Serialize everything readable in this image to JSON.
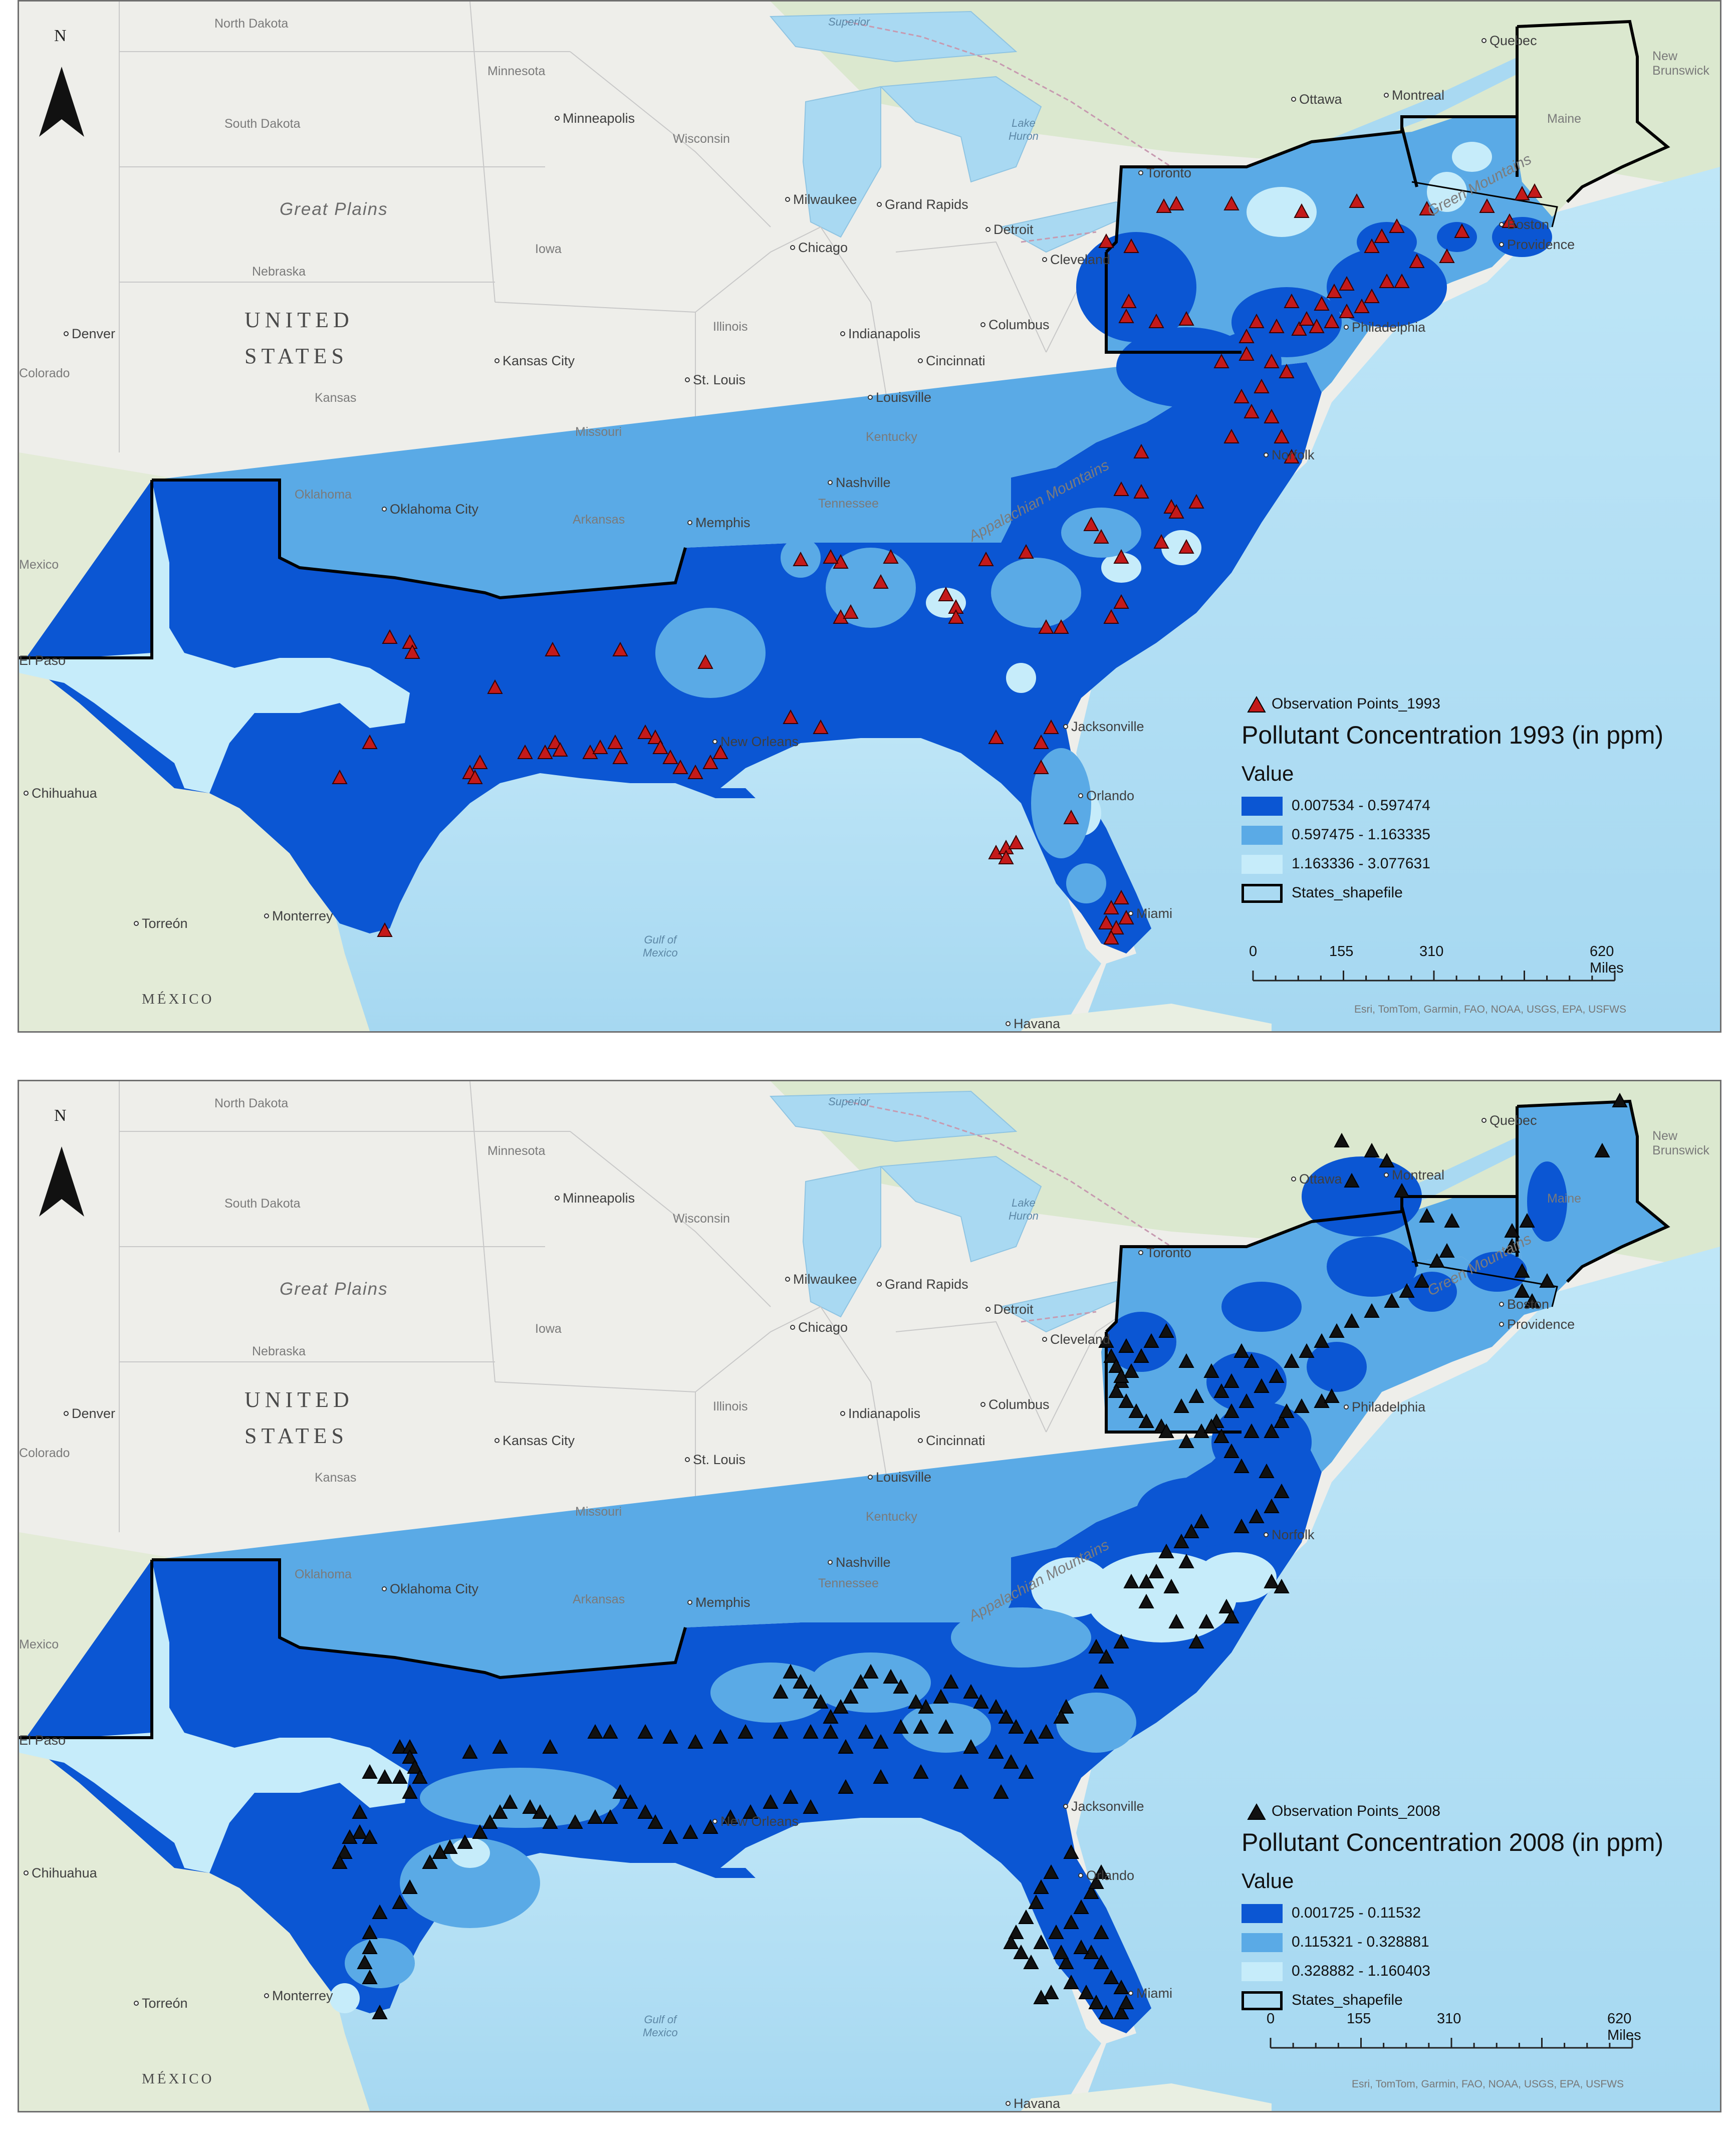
{
  "places": [
    {
      "name": "North Dakota"
    },
    {
      "name": "Minnesota"
    },
    {
      "name": "South Dakota"
    },
    {
      "name": "Minneapolis"
    },
    {
      "name": "Wisconsin"
    },
    {
      "name": "Great Plains"
    },
    {
      "name": "Nebraska"
    },
    {
      "name": "Iowa"
    },
    {
      "name": "UNITED"
    },
    {
      "name": "STATES"
    },
    {
      "name": "Denver"
    },
    {
      "name": "Colorado"
    },
    {
      "name": "Kansas City"
    },
    {
      "name": "Kansas"
    },
    {
      "name": "Illinois"
    },
    {
      "name": "Indianapolis"
    },
    {
      "name": "Columbus"
    },
    {
      "name": "Cincinnati"
    },
    {
      "name": "St. Louis"
    },
    {
      "name": "Missouri"
    },
    {
      "name": "Louisville"
    },
    {
      "name": "Kentucky"
    },
    {
      "name": "Oklahoma"
    },
    {
      "name": "Oklahoma City"
    },
    {
      "name": "Arkansas"
    },
    {
      "name": "Memphis"
    },
    {
      "name": "Nashville"
    },
    {
      "name": "Tennessee"
    },
    {
      "name": "Mexico"
    },
    {
      "name": "El Paso"
    },
    {
      "name": "Chihuahua"
    },
    {
      "name": "Torreón"
    },
    {
      "name": "Monterrey"
    },
    {
      "name": "MÉXICO"
    },
    {
      "name": "Havana"
    },
    {
      "name": "Milwaukee"
    },
    {
      "name": "Grand Rapids"
    },
    {
      "name": "Chicago"
    },
    {
      "name": "Detroit"
    },
    {
      "name": "Cleveland"
    },
    {
      "name": "Toronto"
    },
    {
      "name": "Ottawa"
    },
    {
      "name": "Montreal"
    },
    {
      "name": "Quebec"
    },
    {
      "name": "New Brunswick"
    },
    {
      "name": "Maine"
    },
    {
      "name": "Boston"
    },
    {
      "name": "Providence"
    },
    {
      "name": "Philadelphia"
    },
    {
      "name": "Norfolk"
    },
    {
      "name": "Jacksonville"
    },
    {
      "name": "New Orleans"
    },
    {
      "name": "Orlando"
    },
    {
      "name": "Miami"
    },
    {
      "name": "Superior"
    },
    {
      "name": "Lake Huron"
    },
    {
      "name": "Gulf of Mexico"
    },
    {
      "name": "Appalachian Mountains"
    },
    {
      "name": "Green Mountains"
    }
  ],
  "maps": [
    {
      "observation_label": "Observation Points_1993",
      "title": "Pollutant Concentration 1993 (in ppm)",
      "value_heading": "Value",
      "classes": [
        {
          "label": "0.007534 - 0.597474",
          "color": "#0b56d3"
        },
        {
          "label": "0.597475 - 1.163335",
          "color": "#5aaae6"
        },
        {
          "label": "1.163336 - 3.077631",
          "color": "#c6ecfa"
        }
      ],
      "states_label": "States_shapefile",
      "marker_color": "#c41a1a",
      "scale": {
        "ticks": [
          "0",
          "155",
          "310",
          "620 Miles"
        ]
      },
      "attribution": "Esri, TomTom, Garmin, FAO, NOAA, USGS, EPA, USFWS",
      "north": "N"
    },
    {
      "observation_label": "Observation Points_2008",
      "title": "Pollutant Concentration 2008 (in ppm)",
      "value_heading": "Value",
      "classes": [
        {
          "label": "0.001725 - 0.11532",
          "color": "#0b56d3"
        },
        {
          "label": "0.115321 - 0.328881",
          "color": "#5aaae6"
        },
        {
          "label": "0.328882 - 1.160403",
          "color": "#c6ecfa"
        }
      ],
      "states_label": "States_shapefile",
      "marker_color": "#111111",
      "scale": {
        "ticks": [
          "0",
          "155",
          "310",
          "620 Miles"
        ]
      },
      "attribution": "Esri, TomTom, Garmin, FAO, NOAA, USGS, EPA, USFWS",
      "north": "N"
    }
  ]
}
